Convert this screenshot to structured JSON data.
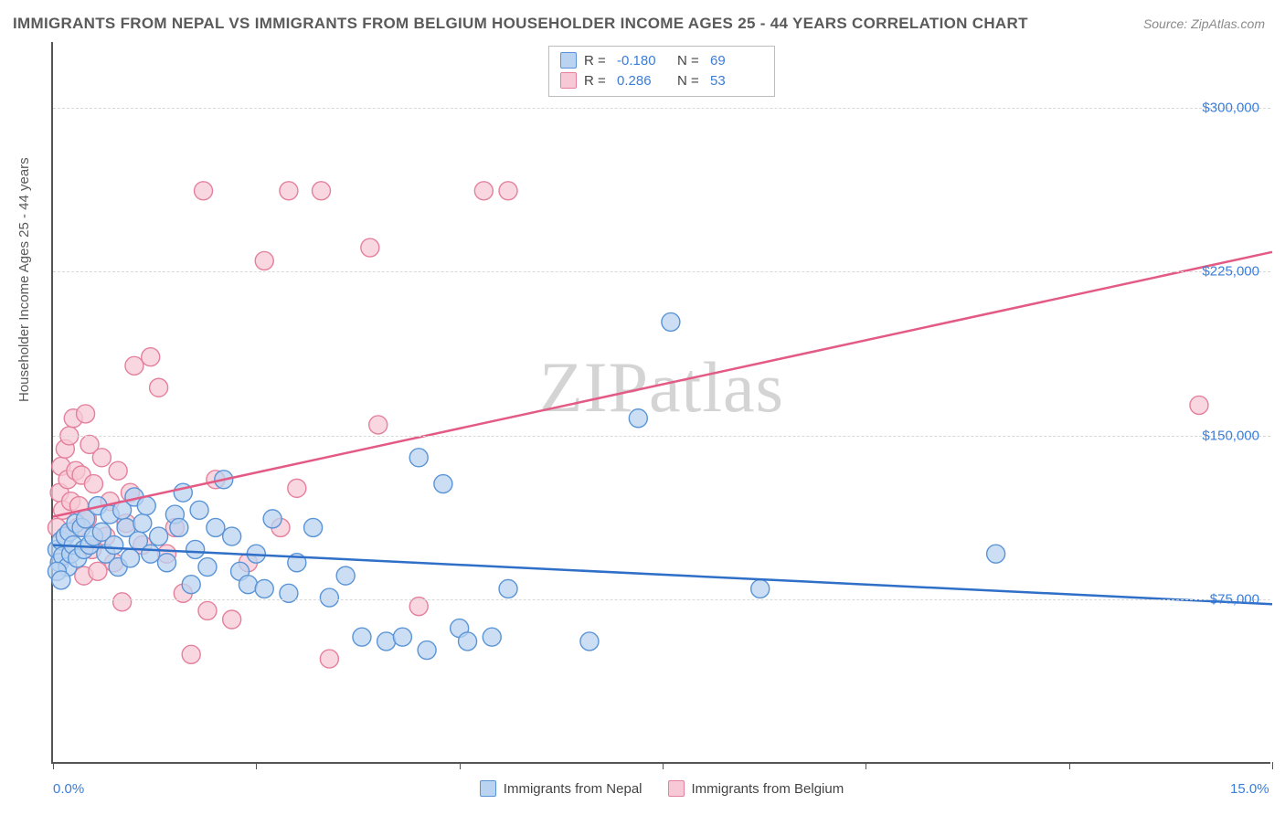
{
  "title": "IMMIGRANTS FROM NEPAL VS IMMIGRANTS FROM BELGIUM HOUSEHOLDER INCOME AGES 25 - 44 YEARS CORRELATION CHART",
  "source_label": "Source: ZipAtlas.com",
  "y_axis_label": "Householder Income Ages 25 - 44 years",
  "watermark_bold": "ZIP",
  "watermark_thin": "atlas",
  "chart": {
    "type": "scatter",
    "xlim": [
      0,
      15
    ],
    "ylim": [
      0,
      330000
    ],
    "x_tick_positions": [
      0,
      2.5,
      5,
      7.5,
      10,
      12.5,
      15
    ],
    "x_tick_labels_shown": {
      "0": "0.0%",
      "15": "15.0%"
    },
    "y_grid_values": [
      75000,
      150000,
      225000,
      300000
    ],
    "y_tick_labels": [
      "$75,000",
      "$150,000",
      "$225,000",
      "$300,000"
    ],
    "background_color": "#ffffff",
    "grid_color": "#d8d8d8",
    "axis_color": "#555555",
    "marker_radius": 10,
    "marker_stroke_width": 1.4,
    "trend_line_width": 2.5,
    "series": [
      {
        "name": "Immigrants from Nepal",
        "fill": "#b9d3f0",
        "stroke": "#5a94d6",
        "line_color": "#2f6fc7",
        "R": "-0.180",
        "N": "69",
        "trend": {
          "x1": 0,
          "y1": 100000,
          "x2": 15,
          "y2": 73000
        },
        "points": [
          [
            0.05,
            98000
          ],
          [
            0.08,
            92000
          ],
          [
            0.1,
            102000
          ],
          [
            0.12,
            95000
          ],
          [
            0.15,
            104000
          ],
          [
            0.18,
            90000
          ],
          [
            0.2,
            106000
          ],
          [
            0.22,
            96000
          ],
          [
            0.25,
            100000
          ],
          [
            0.28,
            110000
          ],
          [
            0.3,
            94000
          ],
          [
            0.35,
            108000
          ],
          [
            0.38,
            98000
          ],
          [
            0.4,
            112000
          ],
          [
            0.45,
            100000
          ],
          [
            0.5,
            104000
          ],
          [
            0.55,
            118000
          ],
          [
            0.6,
            106000
          ],
          [
            0.65,
            96000
          ],
          [
            0.7,
            114000
          ],
          [
            0.75,
            100000
          ],
          [
            0.8,
            90000
          ],
          [
            0.85,
            116000
          ],
          [
            0.9,
            108000
          ],
          [
            0.95,
            94000
          ],
          [
            1.0,
            122000
          ],
          [
            1.05,
            102000
          ],
          [
            1.1,
            110000
          ],
          [
            1.15,
            118000
          ],
          [
            1.2,
            96000
          ],
          [
            1.3,
            104000
          ],
          [
            1.4,
            92000
          ],
          [
            1.5,
            114000
          ],
          [
            1.55,
            108000
          ],
          [
            1.6,
            124000
          ],
          [
            1.7,
            82000
          ],
          [
            1.75,
            98000
          ],
          [
            1.8,
            116000
          ],
          [
            1.9,
            90000
          ],
          [
            2.0,
            108000
          ],
          [
            2.1,
            130000
          ],
          [
            2.2,
            104000
          ],
          [
            2.3,
            88000
          ],
          [
            2.4,
            82000
          ],
          [
            2.5,
            96000
          ],
          [
            2.6,
            80000
          ],
          [
            2.7,
            112000
          ],
          [
            2.9,
            78000
          ],
          [
            3.0,
            92000
          ],
          [
            3.2,
            108000
          ],
          [
            3.4,
            76000
          ],
          [
            3.6,
            86000
          ],
          [
            3.8,
            58000
          ],
          [
            4.1,
            56000
          ],
          [
            4.3,
            58000
          ],
          [
            4.5,
            140000
          ],
          [
            4.6,
            52000
          ],
          [
            4.8,
            128000
          ],
          [
            5.0,
            62000
          ],
          [
            5.1,
            56000
          ],
          [
            5.4,
            58000
          ],
          [
            5.6,
            80000
          ],
          [
            6.6,
            56000
          ],
          [
            7.2,
            158000
          ],
          [
            7.6,
            202000
          ],
          [
            8.7,
            80000
          ],
          [
            11.6,
            96000
          ],
          [
            0.05,
            88000
          ],
          [
            0.1,
            84000
          ]
        ]
      },
      {
        "name": "Immigrants from Belgium",
        "fill": "#f7c9d6",
        "stroke": "#e4809c",
        "line_color": "#e35a84",
        "R": "0.286",
        "N": "53",
        "trend": {
          "x1": 0,
          "y1": 113000,
          "x2": 15,
          "y2": 234000
        },
        "points": [
          [
            0.05,
            108000
          ],
          [
            0.08,
            124000
          ],
          [
            0.1,
            136000
          ],
          [
            0.12,
            116000
          ],
          [
            0.15,
            144000
          ],
          [
            0.18,
            130000
          ],
          [
            0.2,
            150000
          ],
          [
            0.22,
            120000
          ],
          [
            0.25,
            158000
          ],
          [
            0.28,
            134000
          ],
          [
            0.3,
            108000
          ],
          [
            0.32,
            118000
          ],
          [
            0.35,
            132000
          ],
          [
            0.38,
            86000
          ],
          [
            0.4,
            160000
          ],
          [
            0.42,
            112000
          ],
          [
            0.45,
            146000
          ],
          [
            0.48,
            98000
          ],
          [
            0.5,
            128000
          ],
          [
            0.55,
            88000
          ],
          [
            0.6,
            140000
          ],
          [
            0.65,
            104000
          ],
          [
            0.7,
            120000
          ],
          [
            0.75,
            92000
          ],
          [
            0.8,
            134000
          ],
          [
            0.85,
            74000
          ],
          [
            0.9,
            110000
          ],
          [
            0.95,
            124000
          ],
          [
            1.0,
            182000
          ],
          [
            1.1,
            100000
          ],
          [
            1.2,
            186000
          ],
          [
            1.3,
            172000
          ],
          [
            1.4,
            96000
          ],
          [
            1.5,
            108000
          ],
          [
            1.6,
            78000
          ],
          [
            1.7,
            50000
          ],
          [
            1.85,
            262000
          ],
          [
            1.9,
            70000
          ],
          [
            2.0,
            130000
          ],
          [
            2.2,
            66000
          ],
          [
            2.4,
            92000
          ],
          [
            2.6,
            230000
          ],
          [
            2.8,
            108000
          ],
          [
            2.9,
            262000
          ],
          [
            3.0,
            126000
          ],
          [
            3.3,
            262000
          ],
          [
            3.4,
            48000
          ],
          [
            3.9,
            236000
          ],
          [
            4.0,
            155000
          ],
          [
            4.5,
            72000
          ],
          [
            5.3,
            262000
          ],
          [
            5.6,
            262000
          ],
          [
            14.1,
            164000
          ]
        ]
      }
    ]
  },
  "legend_top": {
    "r_label": "R =",
    "n_label": "N ="
  },
  "legend_bottom": [
    {
      "label": "Immigrants from Nepal",
      "fill": "#b9d3f0",
      "stroke": "#5a94d6"
    },
    {
      "label": "Immigrants from Belgium",
      "fill": "#f7c9d6",
      "stroke": "#e4809c"
    }
  ]
}
